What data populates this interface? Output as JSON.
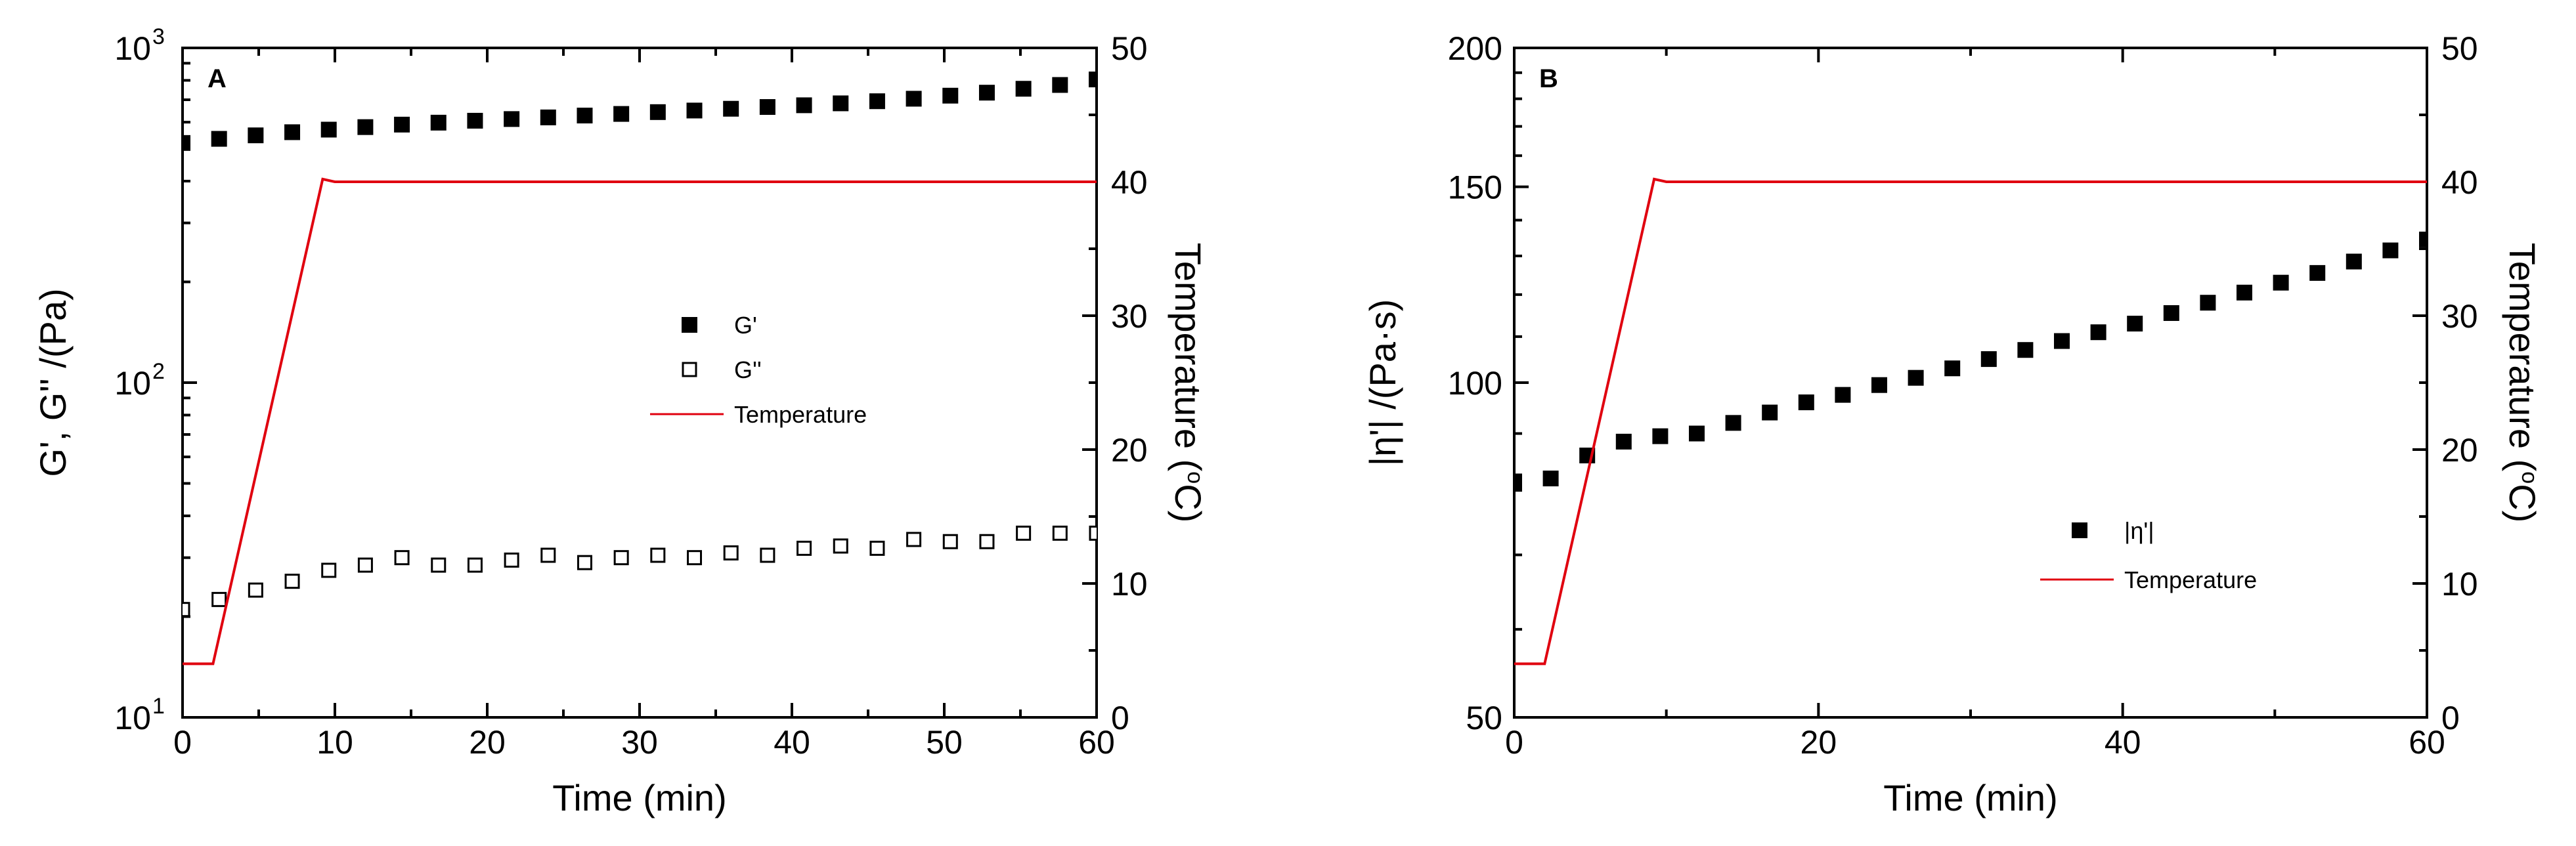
{
  "chart_data": [
    {
      "type": "scatter",
      "panel_label": "A",
      "xlabel": "Time (min)",
      "xlim": [
        0,
        60
      ],
      "x_ticks": [
        "0",
        "10",
        "20",
        "30",
        "40",
        "50",
        "60"
      ],
      "ylabel": "G', G'' /(Pa)",
      "yscale": "log",
      "ylim": [
        10,
        1000
      ],
      "y_ticks": [
        {
          "value": 10,
          "base": "10",
          "exp": "1"
        },
        {
          "value": 100,
          "base": "10",
          "exp": "2"
        },
        {
          "value": 1000,
          "base": "10",
          "exp": "3"
        }
      ],
      "y2label_parts": {
        "pre": "Temperature (",
        "sup": "o",
        "post": "C)"
      },
      "y2lim": [
        0,
        50
      ],
      "y2_ticks": [
        "0",
        "10",
        "20",
        "30",
        "40",
        "50"
      ],
      "legend": {
        "position": "center",
        "entries": [
          "G'",
          "G''",
          "Temperature"
        ]
      },
      "series": [
        {
          "name": "G'",
          "marker": "filled-square",
          "color": "#000000",
          "x": [
            0,
            2.4,
            4.8,
            7.2,
            9.6,
            12,
            14.4,
            16.8,
            19.2,
            21.6,
            24,
            26.4,
            28.8,
            31.2,
            33.6,
            36,
            38.4,
            40.8,
            43.2,
            45.6,
            48,
            50.4,
            52.8,
            55.2,
            57.6,
            60
          ],
          "y": [
            520,
            535,
            548,
            560,
            570,
            580,
            590,
            598,
            606,
            613,
            620,
            628,
            635,
            643,
            650,
            658,
            666,
            674,
            683,
            693,
            705,
            720,
            735,
            755,
            775,
            805
          ]
        },
        {
          "name": "G''",
          "marker": "open-square",
          "color": "#000000",
          "x": [
            0,
            2.4,
            4.8,
            7.2,
            9.6,
            12,
            14.4,
            16.8,
            19.2,
            21.6,
            24,
            26.4,
            28.8,
            31.2,
            33.6,
            36,
            38.4,
            40.8,
            43.2,
            45.6,
            48,
            50.4,
            52.8,
            55.2,
            57.6,
            60
          ],
          "y": [
            21,
            22.5,
            24,
            25.5,
            27.5,
            28.5,
            30,
            28.5,
            28.5,
            29.5,
            30.5,
            29,
            30,
            30.5,
            30,
            31,
            30.5,
            32,
            32.5,
            32,
            34,
            33.5,
            33.5,
            35.5,
            35.5,
            35.5
          ]
        },
        {
          "name": "Temperature",
          "axis": "right",
          "style": "line",
          "color": "#e0000f",
          "x": [
            0,
            2,
            9.2,
            10,
            60
          ],
          "y": [
            4,
            4,
            40.2,
            40,
            40
          ]
        }
      ]
    },
    {
      "type": "scatter",
      "panel_label": "B",
      "xlabel": "Time (min)",
      "xlim": [
        0,
        60
      ],
      "x_ticks": [
        "0",
        "20",
        "40",
        "60"
      ],
      "ylabel": "|η'| /(Pa·s)",
      "yscale": "log",
      "ylim": [
        50,
        200
      ],
      "y_ticks": [
        "50",
        "100",
        "150",
        "200"
      ],
      "y2label_parts": {
        "pre": "Temperature (",
        "sup": "o",
        "post": "C)"
      },
      "y2lim": [
        0,
        50
      ],
      "y2_ticks": [
        "0",
        "10",
        "20",
        "30",
        "40",
        "50"
      ],
      "legend": {
        "position": "lower-right",
        "entries": [
          "|η'|",
          "Temperature"
        ]
      },
      "series": [
        {
          "name": "|η'|",
          "marker": "filled-square",
          "color": "#000000",
          "x": [
            0,
            2.4,
            4.8,
            7.2,
            9.6,
            12,
            14.4,
            16.8,
            19.2,
            21.6,
            24,
            26.4,
            28.8,
            31.2,
            33.6,
            36,
            38.4,
            40.8,
            43.2,
            45.6,
            48,
            50.4,
            52.8,
            55.2,
            57.6,
            60
          ],
          "y": [
            81.5,
            82,
            86,
            88.5,
            89.5,
            90,
            92,
            94,
            96,
            97.5,
            99.5,
            101,
            103,
            105,
            107,
            109,
            111,
            113,
            115.5,
            118,
            120.5,
            123,
            125.5,
            128.5,
            131.5,
            134.5
          ]
        },
        {
          "name": "Temperature",
          "axis": "right",
          "style": "line",
          "color": "#e0000f",
          "x": [
            0,
            2,
            9.2,
            10,
            60
          ],
          "y": [
            4,
            4,
            40.2,
            40,
            40
          ]
        }
      ]
    }
  ]
}
